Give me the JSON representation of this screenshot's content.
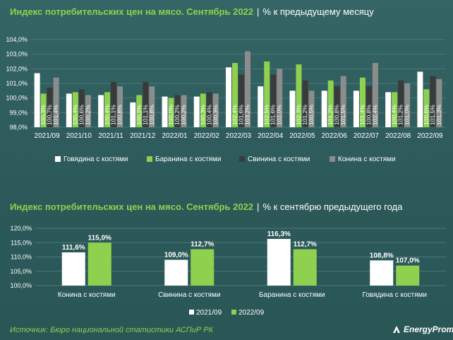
{
  "chart_data": [
    {
      "type": "bar",
      "title": "Индекс потребительских цен на мясо. Сентябрь 2022",
      "subtitle": "% к предыдущему месяцу",
      "xlabel": "",
      "ylabel": "",
      "ylim": [
        98.0,
        104.0
      ],
      "y_ticks": [
        "98,0%",
        "99,0%",
        "100,0%",
        "101,0%",
        "102,0%",
        "103,0%",
        "104,0%"
      ],
      "grid": true,
      "legend": "bottom",
      "categories": [
        "2021/09",
        "2021/10",
        "2021/11",
        "2021/12",
        "2022/01",
        "2022/02",
        "2022/03",
        "2022/04",
        "2022/05",
        "2022/06",
        "2022/07",
        "2022/08",
        "2022/09"
      ],
      "series": [
        {
          "name": "Говядина с костями",
          "color": "#ffffff",
          "values": [
            101.7,
            100.3,
            100.2,
            99.7,
            100.1,
            100.1,
            102.1,
            100.8,
            100.5,
            100.5,
            100.5,
            100.4,
            101.8
          ],
          "labels": [
            "101,7%",
            "100,3%",
            "100,2%",
            "99,7%",
            "100,1%",
            "100,1%",
            "102,1%",
            "100,8%",
            "100,5%",
            "100,5%",
            "100,5%",
            "100,4%",
            "101,8%"
          ]
        },
        {
          "name": "Баранина с костями",
          "color": "#8fd14f",
          "values": [
            100.3,
            100.4,
            100.4,
            100.2,
            100.0,
            100.3,
            102.4,
            102.5,
            102.3,
            101.2,
            101.4,
            100.4,
            100.6
          ],
          "labels": [
            "100,3%",
            "100,4%",
            "100,4%",
            "100,2%",
            "100,0%",
            "100,3%",
            "102,4%",
            "102,5%",
            "102,3%",
            "101,2%",
            "101,4%",
            "100,4%",
            "100,6%"
          ]
        },
        {
          "name": "Свинина с костями",
          "color": "#3a3a3a",
          "values": [
            100.7,
            100.6,
            101.1,
            101.1,
            100.2,
            100.4,
            101.6,
            101.6,
            101.2,
            100.8,
            100.8,
            101.2,
            101.5
          ],
          "labels": [
            "100,7%",
            "100,6%",
            "101,1%",
            "101,1%",
            "100,2%",
            "100,4%",
            "101,6%",
            "101,6%",
            "101,2%",
            "100,8%",
            "100,8%",
            "101,2%",
            "101,5%"
          ]
        },
        {
          "name": "Конина с костями",
          "color": "#8c8c8c",
          "values": [
            101.4,
            100.2,
            100.8,
            100.8,
            100.2,
            100.3,
            103.2,
            102.0,
            100.5,
            101.5,
            102.4,
            101.0,
            101.3
          ],
          "labels": [
            "101,4%",
            "100,2%",
            "100,8%",
            "100,8%",
            "100,2%",
            "100,3%",
            "103,2%",
            "102,0%",
            "100,5%",
            "101,5%",
            "102,4%",
            "101,0%",
            "101,3%"
          ]
        }
      ]
    },
    {
      "type": "bar",
      "title": "Индекс потребительских цен на мясо. Сентябрь 2022",
      "subtitle": "% к сентябрю предыдущего года",
      "xlabel": "",
      "ylabel": "",
      "ylim": [
        100.0,
        120.0
      ],
      "y_ticks": [
        "100,0%",
        "105,0%",
        "110,0%",
        "115,0%",
        "120,0%"
      ],
      "grid": true,
      "legend": "bottom",
      "categories": [
        "Конина с костями",
        "Свинина с костями",
        "Баранина с костями",
        "Говядина с костями"
      ],
      "series": [
        {
          "name": "2021/09",
          "color": "#ffffff",
          "values": [
            111.6,
            109.0,
            116.3,
            108.8
          ],
          "labels": [
            "111,6%",
            "109,0%",
            "116,3%",
            "108,8%"
          ]
        },
        {
          "name": "2022/09",
          "color": "#8fd14f",
          "values": [
            115.0,
            112.7,
            112.7,
            107.0
          ],
          "labels": [
            "115,0%",
            "112,7%",
            "112,7%",
            "107,0%"
          ]
        }
      ]
    }
  ],
  "footer": {
    "source": "Источник: Бюро национальной статистики АСПиР РК",
    "logo": "EnergyProm"
  }
}
